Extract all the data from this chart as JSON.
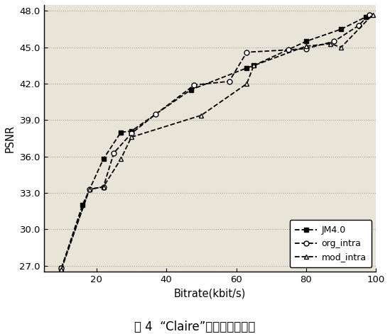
{
  "JM4_0": {
    "x": [
      10,
      16,
      22,
      27,
      30,
      47,
      63,
      65,
      80,
      90,
      97
    ],
    "y": [
      26.8,
      32.0,
      35.8,
      38.0,
      38.1,
      41.5,
      43.3,
      43.5,
      45.5,
      46.5,
      47.5
    ]
  },
  "org_intra": {
    "x": [
      10,
      18,
      22,
      25,
      30,
      37,
      48,
      58,
      63,
      75,
      80,
      88,
      95,
      98
    ],
    "y": [
      26.8,
      33.3,
      33.5,
      36.3,
      37.9,
      39.5,
      41.9,
      42.2,
      44.6,
      44.8,
      44.9,
      45.5,
      46.8,
      47.7
    ]
  },
  "mod_intra": {
    "x": [
      10,
      18,
      22,
      27,
      30,
      50,
      63,
      65,
      80,
      87,
      90,
      99
    ],
    "y": [
      26.7,
      33.3,
      33.5,
      35.8,
      37.6,
      39.4,
      42.0,
      43.5,
      45.1,
      45.3,
      45.0,
      47.7
    ]
  },
  "xlabel": "Bitrate(kbit/s)",
  "ylabel": "PSNR",
  "xlim": [
    5,
    100
  ],
  "ylim": [
    26.5,
    48.5
  ],
  "yticks": [
    27.0,
    30.0,
    33.0,
    36.0,
    39.0,
    42.0,
    45.0,
    48.0
  ],
  "xticks": [
    20,
    40,
    60,
    80,
    100
  ],
  "title": "图 4  “Claire”序列的率失真曲",
  "legend_labels": [
    "JM4.0",
    "org_intra",
    "mod_intra"
  ],
  "line_color": "#000000",
  "background_color": "#ffffff",
  "plot_bg_color": "#e8e4d8",
  "grid_color": "#999999"
}
